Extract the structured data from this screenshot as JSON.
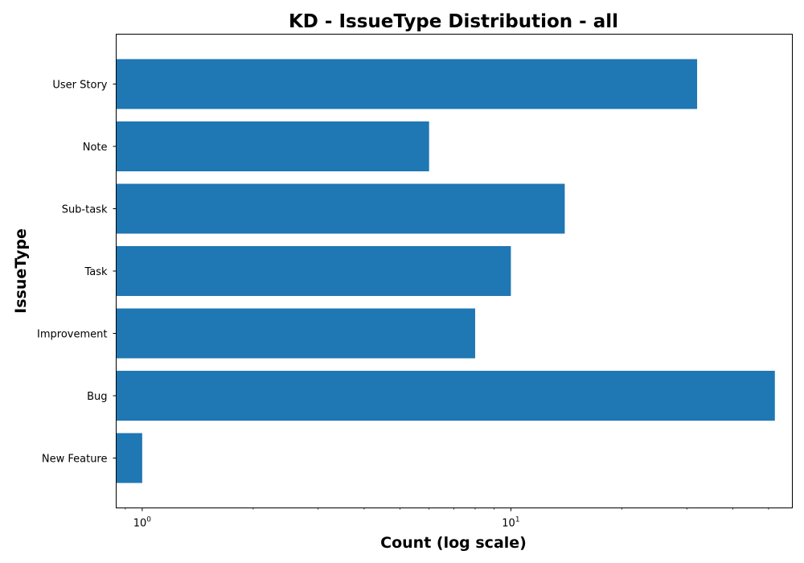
{
  "chart_data": {
    "type": "bar",
    "orientation": "horizontal",
    "title": "KD - IssueType Distribution - all",
    "xlabel": "Count (log scale)",
    "ylabel": "IssueType",
    "x_scale": "log",
    "xlim": [
      0.85,
      58
    ],
    "x_major_ticks": [
      1,
      10
    ],
    "x_major_tick_labels": [
      {
        "base": "10",
        "exp": "0"
      },
      {
        "base": "10",
        "exp": "1"
      }
    ],
    "categories": [
      "User Story",
      "Note",
      "Sub-task",
      "Task",
      "Improvement",
      "Bug",
      "New Feature"
    ],
    "values": [
      32,
      6,
      14,
      10,
      8,
      52,
      1
    ],
    "bar_color": "#1f77b4",
    "grid": false,
    "legend": false
  }
}
